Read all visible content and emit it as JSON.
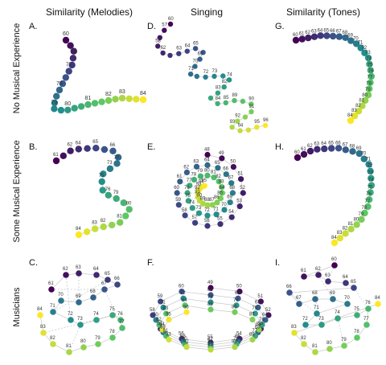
{
  "columns": [
    "Similarity (Melodies)",
    "Singing",
    "Similarity (Tones)"
  ],
  "rows": [
    "No Musical Experience",
    "Some Musical Experience",
    "Musicians"
  ],
  "panels": [
    "A.",
    "B.",
    "C.",
    "D.",
    "E.",
    "F.",
    "G.",
    "H.",
    "I."
  ],
  "labels": {
    "A": [
      "60",
      "76",
      "77",
      "78",
      "79",
      "80",
      "81",
      "82",
      "83",
      "84"
    ],
    "B": [
      "61",
      "62",
      "64",
      "65",
      "66",
      "70",
      "73",
      "75",
      "76",
      "79",
      "80",
      "81",
      "82",
      "83",
      "84"
    ],
    "C": [
      "61",
      "62",
      "63",
      "64",
      "65",
      "66",
      "67",
      "68",
      "69",
      "70",
      "71",
      "72",
      "73",
      "74",
      "75",
      "76",
      "77",
      "78",
      "79",
      "80",
      "81",
      "82",
      "83",
      "84"
    ],
    "D": [
      "60",
      "57",
      "58",
      "62",
      "63",
      "64",
      "65",
      "69",
      "70",
      "71",
      "72",
      "73",
      "74",
      "82",
      "83",
      "84",
      "85",
      "89",
      "90",
      "91",
      "92",
      "93",
      "94",
      "95",
      "96"
    ],
    "E": [
      "48",
      "49",
      "50",
      "51",
      "52",
      "53",
      "54",
      "55",
      "56",
      "57",
      "58",
      "59",
      "60",
      "61",
      "62",
      "63",
      "64",
      "65",
      "66",
      "67",
      "68",
      "69",
      "70",
      "71",
      "72",
      "73",
      "74",
      "75",
      "76",
      "77",
      "78",
      "79",
      "80",
      "81",
      "82",
      "83",
      "84",
      "85",
      "86",
      "87",
      "88",
      "89",
      "90",
      "91",
      "92",
      "93",
      "94",
      "95"
    ],
    "F": [
      "49",
      "50",
      "51",
      "52",
      "53",
      "54",
      "55",
      "56",
      "57",
      "58",
      "59",
      "60",
      "61",
      "62",
      "63",
      "64",
      "65",
      "66",
      "67",
      "68",
      "69",
      "70",
      "71",
      "72",
      "73",
      "74",
      "75",
      "76",
      "77",
      "78",
      "79",
      "80",
      "81",
      "82",
      "83",
      "84",
      "85",
      "86",
      "87",
      "88",
      "89",
      "90",
      "91",
      "92",
      "93",
      "94",
      "95",
      "96"
    ],
    "G": [
      "60",
      "61",
      "62",
      "63",
      "64",
      "65",
      "66",
      "67",
      "68",
      "69",
      "70",
      "71",
      "72",
      "73",
      "74",
      "75",
      "76",
      "77",
      "78",
      "79",
      "80",
      "81",
      "82",
      "83",
      "84"
    ],
    "H": [
      "60",
      "61",
      "62",
      "63",
      "64",
      "65",
      "66",
      "67",
      "68",
      "69",
      "70",
      "71",
      "72",
      "73",
      "74",
      "75",
      "76",
      "77",
      "78",
      "79",
      "80",
      "81",
      "82",
      "83",
      "84"
    ],
    "I": [
      "60",
      "61",
      "62",
      "63",
      "64",
      "65",
      "66",
      "67",
      "68",
      "69",
      "70",
      "71",
      "72",
      "73",
      "74",
      "75",
      "76",
      "77",
      "78",
      "79",
      "80",
      "81",
      "82",
      "83",
      "84"
    ]
  },
  "colors": {
    "low": "#440154",
    "mid_low": "#3b528b",
    "mid": "#21908c",
    "mid_high": "#5dc863",
    "high": "#fde725"
  }
}
